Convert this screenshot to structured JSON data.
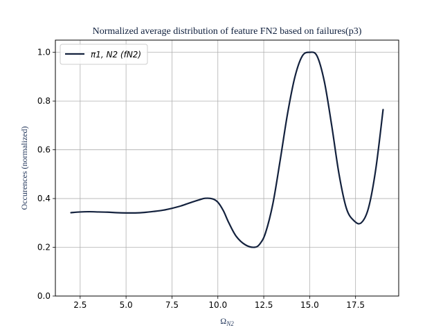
{
  "chart_data": {
    "type": "line",
    "title": "Normalized average distribution of feature FN2 based on failures(p3)",
    "xlabel": "Ω",
    "xlabel_sub": "N2",
    "ylabel": "Occurences (normalized)",
    "xlim": [
      1.15,
      19.85
    ],
    "ylim": [
      0.0,
      1.05
    ],
    "xticks": [
      2.5,
      5.0,
      7.5,
      10.0,
      12.5,
      15.0,
      17.5
    ],
    "xtick_labels": [
      "2.5",
      "5.0",
      "7.5",
      "10.0",
      "12.5",
      "15.0",
      "17.5"
    ],
    "yticks": [
      0.0,
      0.2,
      0.4,
      0.6,
      0.8,
      1.0
    ],
    "ytick_labels": [
      "0.0",
      "0.2",
      "0.4",
      "0.6",
      "0.8",
      "1.0"
    ],
    "grid": true,
    "legend_position": "upper-left",
    "line_color": "#13213d",
    "series": [
      {
        "name": "π1, N2 (fN2)",
        "x": [
          2.0,
          2.5,
          3.0,
          3.5,
          4.0,
          4.5,
          5.0,
          5.5,
          6.0,
          6.5,
          7.0,
          7.5,
          8.0,
          8.5,
          9.0,
          9.3,
          9.7,
          10.0,
          10.3,
          10.6,
          11.0,
          11.5,
          12.0,
          12.3,
          12.6,
          13.0,
          13.4,
          13.8,
          14.2,
          14.6,
          15.0,
          15.4,
          15.8,
          16.2,
          16.6,
          17.0,
          17.4,
          17.8,
          18.2,
          18.6,
          19.0
        ],
        "y": [
          0.342,
          0.345,
          0.346,
          0.345,
          0.344,
          0.342,
          0.341,
          0.341,
          0.343,
          0.347,
          0.352,
          0.36,
          0.37,
          0.383,
          0.395,
          0.401,
          0.399,
          0.385,
          0.35,
          0.3,
          0.245,
          0.21,
          0.2,
          0.215,
          0.26,
          0.38,
          0.56,
          0.75,
          0.9,
          0.985,
          1.0,
          0.985,
          0.88,
          0.7,
          0.5,
          0.36,
          0.31,
          0.3,
          0.36,
          0.52,
          0.765
        ]
      }
    ]
  }
}
